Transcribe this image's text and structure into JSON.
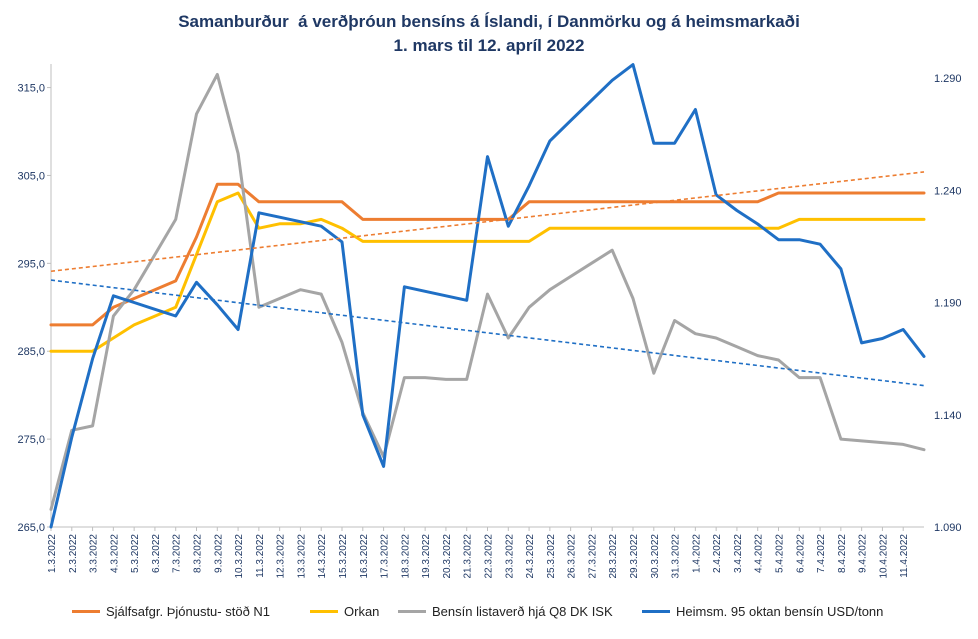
{
  "chart_data": {
    "type": "line",
    "title": "Samanburður  á verðþróun bensíns á Íslandi, í Danmörku og á heimsmarkaði",
    "subtitle": "1. mars til 12. apríl 2022",
    "categories": [
      "1.3.2022",
      "2.3.2022",
      "3.3.2022",
      "4.3.2022",
      "5.3.2022",
      "6.3.2022",
      "7.3.2022",
      "8.3.2022",
      "9.3.2022",
      "10.3.2022",
      "11.3.2022",
      "12.3.2022",
      "13.3.2022",
      "14.3.2022",
      "15.3.2022",
      "16.3.2022",
      "17.3.2022",
      "18.3.2022",
      "19.3.2022",
      "20.3.2022",
      "21.3.2022",
      "22.3.2022",
      "23.3.2022",
      "24.3.2022",
      "25.3.2022",
      "26.3.2022",
      "27.3.2022",
      "28.3.2022",
      "29.3.2022",
      "30.3.2022",
      "31.3.2022",
      "1.4.2022",
      "2.4.2022",
      "3.4.2022",
      "4.4.2022",
      "5.4.2022",
      "6.4.2022",
      "7.4.2022",
      "8.4.2022",
      "9.4.2022",
      "10.4.2022",
      "11.4.2022",
      "12.4.2022"
    ],
    "x_tick_labels": [
      "1.3.2022",
      "2.3.2022",
      "3.3.2022",
      "4.3.2022",
      "5.3.2022",
      "6.3.2022",
      "7.3.2022",
      "8.3.2022",
      "9.3.2022",
      "10.3.2022",
      "11.3.2022",
      "12.3.2022",
      "13.3.2022",
      "14.3.2022",
      "15.3.2022",
      "16.3.2022",
      "17.3.2022",
      "18.3.2022",
      "19.3.2022",
      "20.3.2022",
      "21.3.2022",
      "22.3.2022",
      "23.3.2022",
      "24.3.2022",
      "25.3.2022",
      "26.3.2022",
      "27.3.2022",
      "28.3.2022",
      "29.3.2022",
      "30.3.2022",
      "31.3.2022",
      "1.4.2022",
      "2.4.2022",
      "3.4.2022",
      "4.4.2022",
      "5.4.2022",
      "6.4.2022",
      "7.4.2022",
      "8.4.2022",
      "9.4.2022",
      "10.4.2022",
      "11.4.2022"
    ],
    "y_left": {
      "min": 265,
      "max": 317,
      "ticks": [
        "265,0",
        "275,0",
        "285,0",
        "295,0",
        "305,0",
        "315,0"
      ],
      "tick_values": [
        265,
        275,
        285,
        295,
        305,
        315
      ]
    },
    "y_right": {
      "min": 1.09,
      "max": 1.2936,
      "ticks": [
        "1.090",
        "1.140",
        "1.190",
        "1.240",
        "1.290"
      ],
      "tick_values": [
        1.09,
        1.14,
        1.19,
        1.24,
        1.29
      ]
    },
    "grid": false,
    "legend_position": "bottom",
    "series": [
      {
        "name": "Sjálfsafgr. Þjónustu- stöð N1",
        "axis": "left",
        "color": "#ED7D31",
        "values": [
          288,
          288,
          288,
          290,
          291,
          292,
          293,
          298,
          304,
          304,
          302,
          302,
          302,
          302,
          302,
          300,
          300,
          300,
          300,
          300,
          300,
          300,
          300,
          302,
          302,
          302,
          302,
          302,
          302,
          302,
          302,
          302,
          302,
          302,
          302,
          303,
          303,
          303,
          303,
          303,
          303,
          303,
          303
        ]
      },
      {
        "name": "Orkan",
        "axis": "left",
        "color": "#FFC000",
        "values": [
          285,
          285,
          285,
          286.5,
          288,
          289,
          290,
          296,
          302,
          303,
          299,
          299.5,
          299.5,
          300,
          299,
          297.5,
          297.5,
          297.5,
          297.5,
          297.5,
          297.5,
          297.5,
          297.5,
          297.5,
          299,
          299,
          299,
          299,
          299,
          299,
          299,
          299,
          299,
          299,
          299,
          299,
          300,
          300,
          300,
          300,
          300,
          300,
          300
        ]
      },
      {
        "name": "Bensín listaverð hjá Q8 DK ISK",
        "axis": "left",
        "color": "#A5A5A5",
        "values": [
          267,
          276,
          276.5,
          289,
          292,
          296,
          300,
          312,
          316.5,
          307.5,
          290,
          291,
          292,
          291.5,
          286,
          278,
          273,
          282,
          282,
          281.8,
          281.8,
          291.5,
          286.5,
          290,
          292,
          293.5,
          295,
          296.5,
          291,
          282.5,
          288.5,
          287,
          286.5,
          285.5,
          284.5,
          284,
          282,
          282,
          275,
          274.8,
          274.6,
          274.4,
          273.8
        ]
      },
      {
        "name": "Heimsm. 95 oktan  bensín USD/tonn",
        "axis": "right",
        "color": "#1F6FC5",
        "values": [
          1.09,
          1.13,
          1.165,
          1.193,
          1.19,
          1.187,
          1.184,
          1.199,
          1.189,
          1.178,
          1.23,
          1.228,
          1.226,
          1.224,
          1.217,
          1.14,
          1.117,
          1.197,
          1.195,
          1.193,
          1.191,
          1.255,
          1.224,
          1.242,
          1.262,
          1.271,
          1.28,
          1.289,
          1.296,
          1.261,
          1.261,
          1.276,
          1.238,
          1.231,
          1.225,
          1.218,
          1.218,
          1.216,
          1.205,
          1.172,
          1.174,
          1.178,
          1.166
        ]
      }
    ],
    "trendlines": [
      {
        "of": "Sjálfsafgr. Þjónustu- stöð N1",
        "axis": "left",
        "color": "#ED7D31",
        "start": 294.1,
        "end": 305.4,
        "dashed": true
      },
      {
        "of": "Heimsm. 95 oktan  bensín USD/tonn",
        "axis": "right",
        "color": "#1F6FC5",
        "start": 1.2,
        "end": 1.153,
        "dashed": true
      }
    ]
  }
}
